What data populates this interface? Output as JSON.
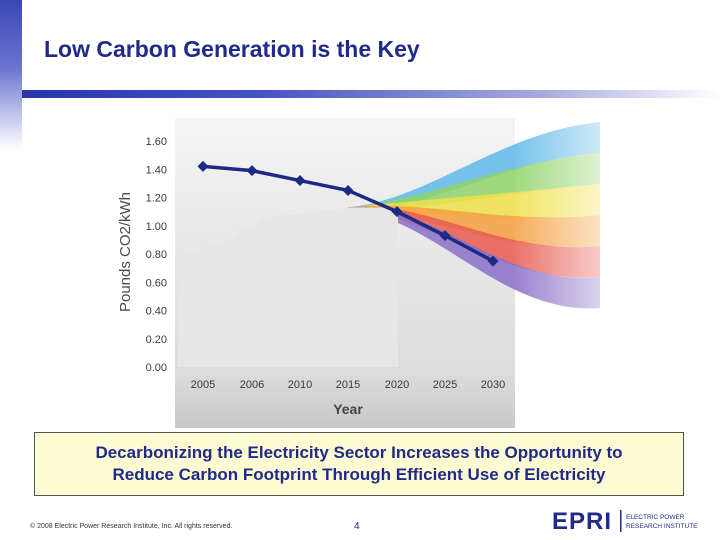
{
  "slide": {
    "title": "Low Carbon Generation is the Key",
    "callout_line1": "Decarbonizing the Electricity Sector Increases the Opportunity to",
    "callout_line2": "Reduce Carbon Footprint Through Efficient Use of Electricity",
    "copyright": "© 2008 Electric Power Research Institute, Inc. All rights reserved.",
    "page_number": "4",
    "logo_mark": "EPRI",
    "logo_text_line1": "ELECTRIC POWER",
    "logo_text_line2": "RESEARCH INSTITUTE"
  },
  "colors": {
    "title": "#1f2a8a",
    "series_line": "#1c2a86",
    "history_fill": "#e6e6e6",
    "callout_bg": "#fdfbd2",
    "fan": [
      "#5fb8e8",
      "#8fd46a",
      "#f0e04a",
      "#f5a040",
      "#e85a50",
      "#8a6ec8"
    ]
  },
  "chart_data": {
    "type": "line",
    "xlabel": "Year",
    "ylabel": "Pounds CO2/kWh",
    "categories": [
      "2005",
      "2006",
      "2010",
      "2015",
      "2020",
      "2025",
      "2030"
    ],
    "values": [
      1.42,
      1.39,
      1.32,
      1.25,
      1.1,
      0.93,
      0.75
    ],
    "ylim": [
      0,
      1.6
    ],
    "yticks": [
      "0.00",
      "0.20",
      "0.40",
      "0.60",
      "0.80",
      "1.00",
      "1.20",
      "1.40",
      "1.60"
    ],
    "grid": false,
    "legend": "none"
  }
}
